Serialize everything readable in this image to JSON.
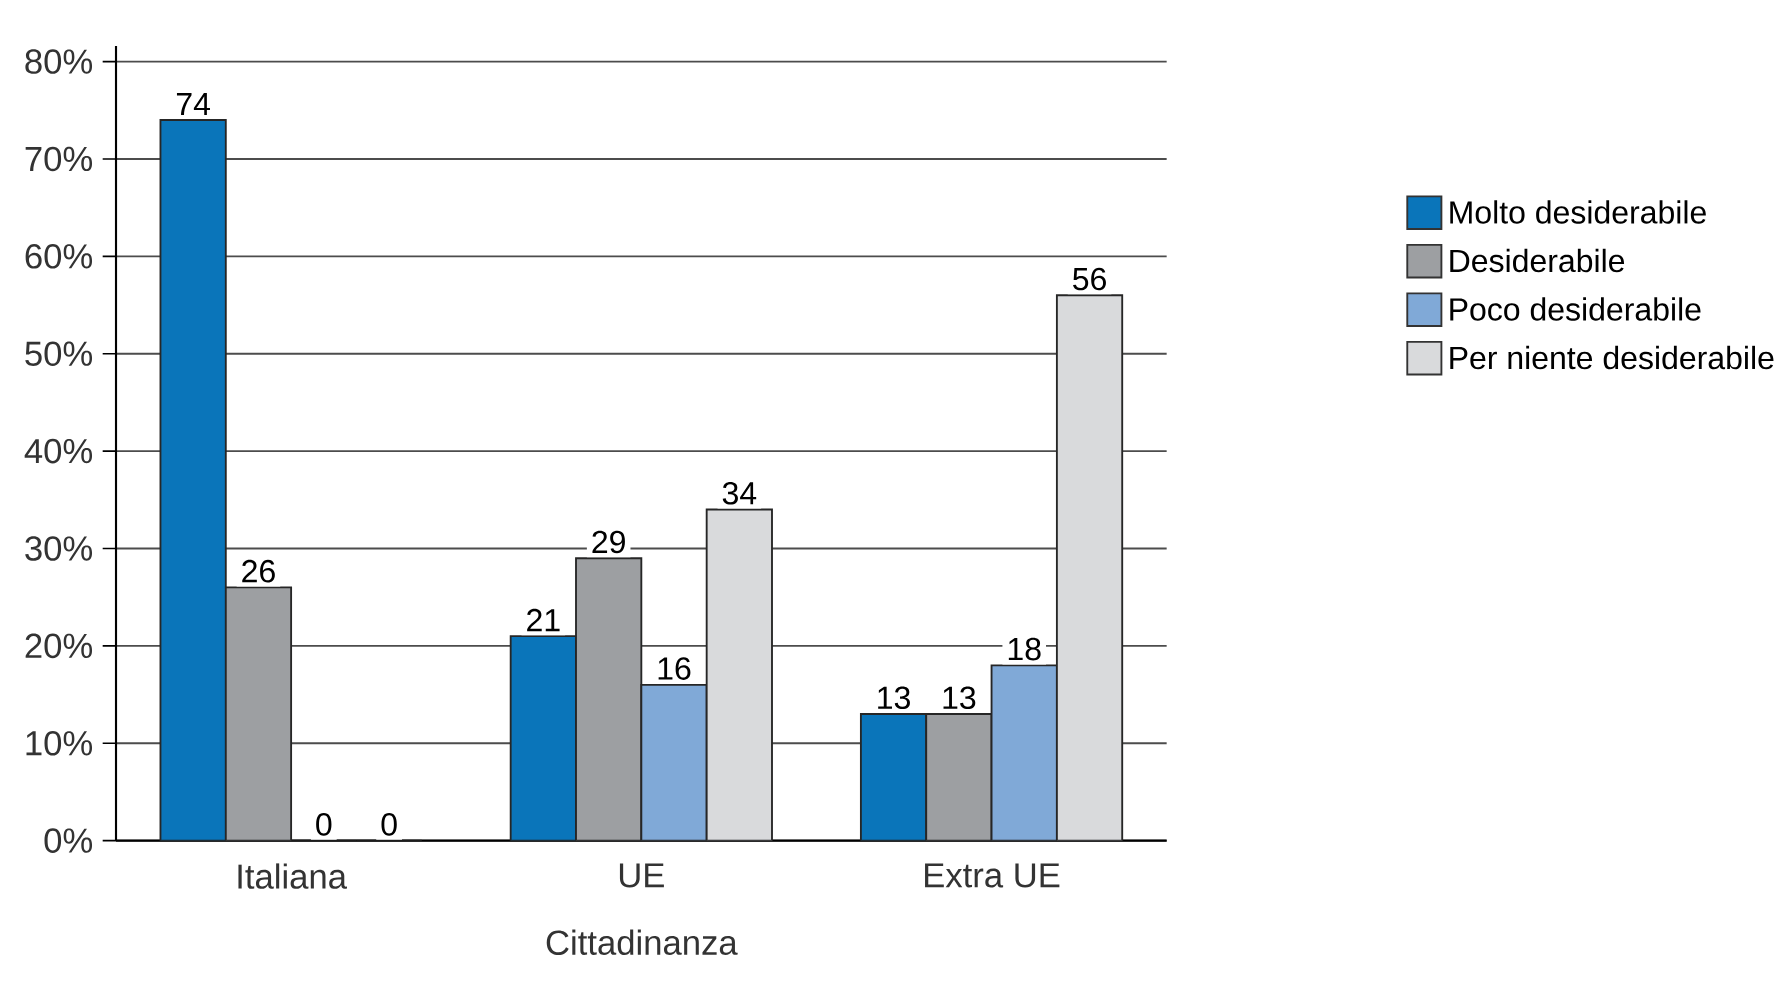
{
  "chart_data": {
    "type": "bar",
    "xlabel": "Cittadinanza",
    "categories": [
      "Italiana",
      "UE",
      "Extra UE"
    ],
    "series": [
      {
        "name": "Molto desiderabile",
        "color": "#0a75ba",
        "values": [
          74,
          21,
          13
        ]
      },
      {
        "name": "Desiderabile",
        "color": "#9d9fa2",
        "values": [
          26,
          29,
          13
        ]
      },
      {
        "name": "Poco desiderabile",
        "color": "#80a9d7",
        "values": [
          0,
          16,
          18
        ]
      },
      {
        "name": "Per niente desiderabile",
        "color": "#d9dadc",
        "values": [
          0,
          34,
          56
        ]
      }
    ],
    "ylim": [
      0,
      80
    ],
    "yticks": [
      {
        "value": 0,
        "label": "0%"
      },
      {
        "value": 10,
        "label": "10%"
      },
      {
        "value": 20,
        "label": "20%"
      },
      {
        "value": 30,
        "label": "30%"
      },
      {
        "value": 40,
        "label": "40%"
      },
      {
        "value": 50,
        "label": "50%"
      },
      {
        "value": 60,
        "label": "60%"
      },
      {
        "value": 70,
        "label": "70%"
      },
      {
        "value": 80,
        "label": "80%"
      }
    ],
    "grid": "y",
    "legend": "right",
    "data_labels": true
  }
}
